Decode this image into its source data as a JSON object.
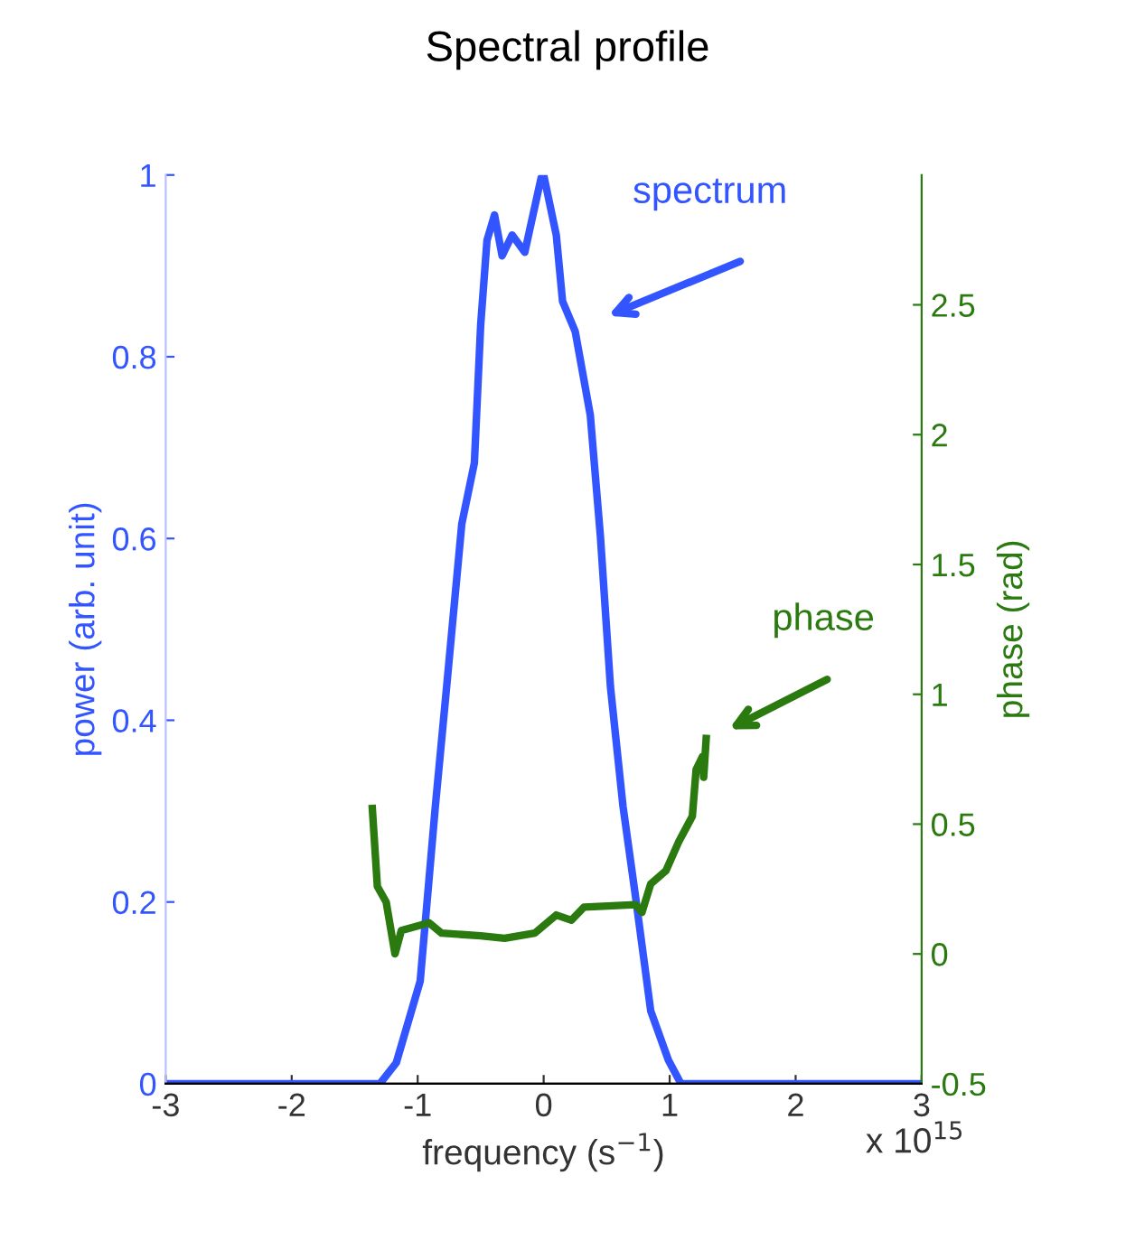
{
  "chart_data": {
    "type": "line",
    "title": "Spectral profile",
    "xlabel": "frequency (s$^{−1}$)",
    "ylabel": "power (arb. unit)",
    "y2label": "phase (rad)",
    "xlim": [
      -3,
      3
    ],
    "xticks": [
      -3,
      -2,
      -1,
      0,
      1,
      2,
      3
    ],
    "ylim": [
      0,
      1
    ],
    "yticks": [
      0,
      0.2,
      0.4,
      0.6,
      0.8,
      1
    ],
    "y2lim": [
      -0.5,
      3.0
    ],
    "y2ticks": [
      -0.5,
      0,
      0.5,
      1,
      1.5,
      2,
      2.5
    ],
    "grid": false,
    "legend": false,
    "series": [
      {
        "name": "spectrum",
        "color": "#3355ff",
        "x": [
          -3,
          -1.3,
          -1.17,
          -0.98,
          -0.86,
          -0.77,
          -0.65,
          -0.55,
          -0.5,
          -0.45,
          -0.39,
          -0.33,
          -0.25,
          -0.15,
          -0.02,
          0.0,
          0.1,
          0.15,
          0.25,
          0.37,
          0.45,
          0.53,
          0.63,
          0.73,
          0.85,
          0.99,
          1.09,
          3
        ],
        "values": [
          0,
          0,
          0.023,
          0.113,
          0.305,
          0.437,
          0.616,
          0.683,
          0.835,
          0.928,
          0.956,
          0.911,
          0.934,
          0.915,
          0.997,
          1.0,
          0.934,
          0.861,
          0.828,
          0.736,
          0.603,
          0.437,
          0.305,
          0.205,
          0.08,
          0.026,
          0,
          0
        ]
      },
      {
        "name": "phase",
        "color": "#2a7a10",
        "axis": "y2",
        "x": [
          -1.36,
          -1.32,
          -1.25,
          -1.18,
          -1.13,
          -0.91,
          -0.81,
          -0.5,
          -0.31,
          -0.07,
          0.1,
          0.22,
          0.32,
          0.73,
          0.78,
          0.85,
          0.97,
          1.07,
          1.18,
          1.21,
          1.26,
          1.27,
          1.29
        ],
        "values": [
          0.56,
          0.26,
          0.2,
          0.0,
          0.09,
          0.12,
          0.08,
          0.07,
          0.06,
          0.08,
          0.15,
          0.13,
          0.18,
          0.19,
          0.16,
          0.27,
          0.32,
          0.43,
          0.53,
          0.71,
          0.76,
          0.68,
          0.83
        ]
      }
    ],
    "annotations": [
      "x 10$^{15}$"
    ]
  }
}
